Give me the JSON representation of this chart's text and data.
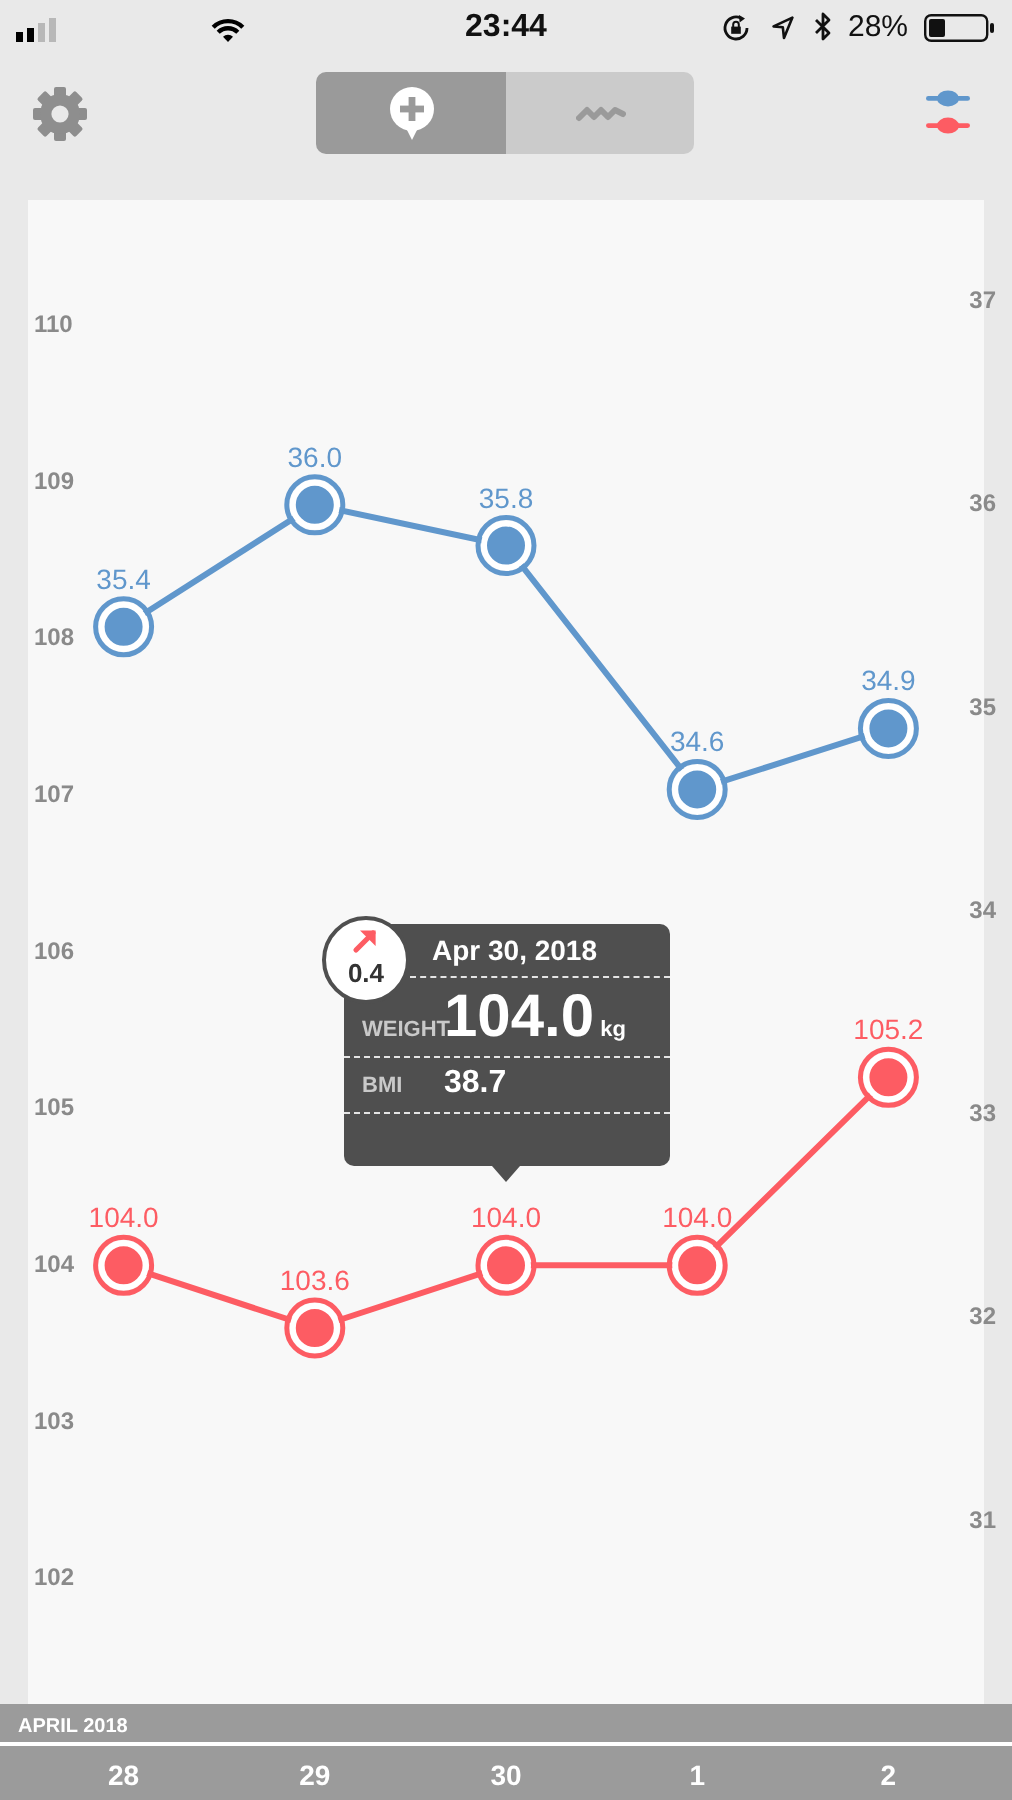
{
  "chart_data": {
    "type": "line",
    "categories": [
      "28",
      "29",
      "30",
      "1",
      "2"
    ],
    "xlabel": "APRIL 2018",
    "series": [
      {
        "color": "#fd5c63",
        "values": [
          104.0,
          103.6,
          104.0,
          104.0,
          105.2
        ],
        "value_labels": [
          "104.0",
          "103.6",
          "104.0",
          "104.0",
          "105.2"
        ]
      },
      {
        "color": "#6097cc",
        "axis": "y2",
        "values": [
          35.4,
          36.0,
          35.8,
          34.6,
          34.9
        ],
        "value_labels": [
          "35.4",
          "36.0",
          "35.8",
          "34.6",
          "34.9"
        ]
      }
    ],
    "ylim": [
      101.2,
      110.8
    ],
    "yticks": [
      102,
      103,
      104,
      105,
      106,
      107,
      108,
      109,
      110
    ],
    "y2lim": [
      30.1,
      37.5
    ],
    "y2ticks": [
      31,
      32,
      33,
      34,
      35,
      36,
      37
    ],
    "marker": "circle",
    "annotations": [
      "Apr 30, 2018",
      "0.4",
      "WEIGHT",
      "104.0",
      "kg",
      "BMI",
      "38.7",
      "23:44",
      "28%"
    ]
  }
}
